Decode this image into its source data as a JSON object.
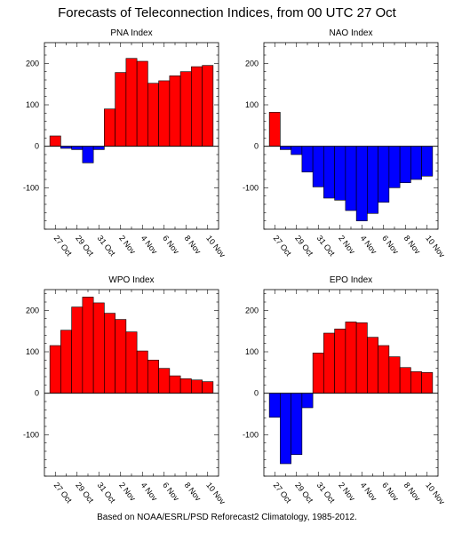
{
  "title": "Forecasts of Teleconnection Indices, from 00 UTC 27 Oct",
  "footer": "Based on NOAA/ESRL/PSD Reforecast2 Climatology, 1985-2012.",
  "colors": {
    "positive": "#ff0000",
    "negative": "#0000ff",
    "axis": "#000000"
  },
  "chart_data": [
    {
      "type": "bar",
      "title": "PNA Index",
      "categories": [
        "27 Oct",
        "28 Oct",
        "29 Oct",
        "30 Oct",
        "31 Oct",
        "1 Nov",
        "2 Nov",
        "3 Nov",
        "4 Nov",
        "5 Nov",
        "6 Nov",
        "7 Nov",
        "8 Nov",
        "9 Nov",
        "10 Nov"
      ],
      "tick_labels": [
        "27 Oct",
        "29 Oct",
        "31 Oct",
        "2 Nov",
        "4 Nov",
        "6 Nov",
        "8 Nov",
        "10 Nov"
      ],
      "values": [
        25,
        -5,
        -8,
        -40,
        -8,
        90,
        178,
        212,
        205,
        152,
        158,
        170,
        180,
        192,
        195
      ],
      "ylim": [
        -200,
        250
      ],
      "yticks": [
        -100,
        0,
        100,
        200
      ]
    },
    {
      "type": "bar",
      "title": "NAO Index",
      "categories": [
        "27 Oct",
        "28 Oct",
        "29 Oct",
        "30 Oct",
        "31 Oct",
        "1 Nov",
        "2 Nov",
        "3 Nov",
        "4 Nov",
        "5 Nov",
        "6 Nov",
        "7 Nov",
        "8 Nov",
        "9 Nov",
        "10 Nov"
      ],
      "tick_labels": [
        "27 Oct",
        "29 Oct",
        "31 Oct",
        "2 Nov",
        "4 Nov",
        "6 Nov",
        "8 Nov",
        "10 Nov"
      ],
      "values": [
        82,
        -8,
        -20,
        -62,
        -98,
        -125,
        -130,
        -155,
        -180,
        -162,
        -135,
        -100,
        -88,
        -80,
        -72
      ],
      "ylim": [
        -200,
        250
      ],
      "yticks": [
        -100,
        0,
        100,
        200
      ]
    },
    {
      "type": "bar",
      "title": "WPO Index",
      "categories": [
        "27 Oct",
        "28 Oct",
        "29 Oct",
        "30 Oct",
        "31 Oct",
        "1 Nov",
        "2 Nov",
        "3 Nov",
        "4 Nov",
        "5 Nov",
        "6 Nov",
        "7 Nov",
        "8 Nov",
        "9 Nov",
        "10 Nov"
      ],
      "tick_labels": [
        "27 Oct",
        "29 Oct",
        "31 Oct",
        "2 Nov",
        "4 Nov",
        "6 Nov",
        "8 Nov",
        "10 Nov"
      ],
      "values": [
        115,
        152,
        208,
        232,
        218,
        193,
        178,
        148,
        102,
        80,
        60,
        42,
        35,
        32,
        28
      ],
      "ylim": [
        -200,
        250
      ],
      "yticks": [
        -100,
        0,
        100,
        200
      ]
    },
    {
      "type": "bar",
      "title": "EPO Index",
      "categories": [
        "27 Oct",
        "28 Oct",
        "29 Oct",
        "30 Oct",
        "31 Oct",
        "1 Nov",
        "2 Nov",
        "3 Nov",
        "4 Nov",
        "5 Nov",
        "6 Nov",
        "7 Nov",
        "8 Nov",
        "9 Nov",
        "10 Nov"
      ],
      "tick_labels": [
        "27 Oct",
        "29 Oct",
        "31 Oct",
        "2 Nov",
        "4 Nov",
        "6 Nov",
        "8 Nov",
        "10 Nov"
      ],
      "values": [
        -58,
        -170,
        -148,
        -35,
        97,
        145,
        155,
        172,
        170,
        135,
        115,
        88,
        62,
        52,
        50
      ],
      "ylim": [
        -200,
        250
      ],
      "yticks": [
        -100,
        0,
        100,
        200
      ]
    }
  ]
}
